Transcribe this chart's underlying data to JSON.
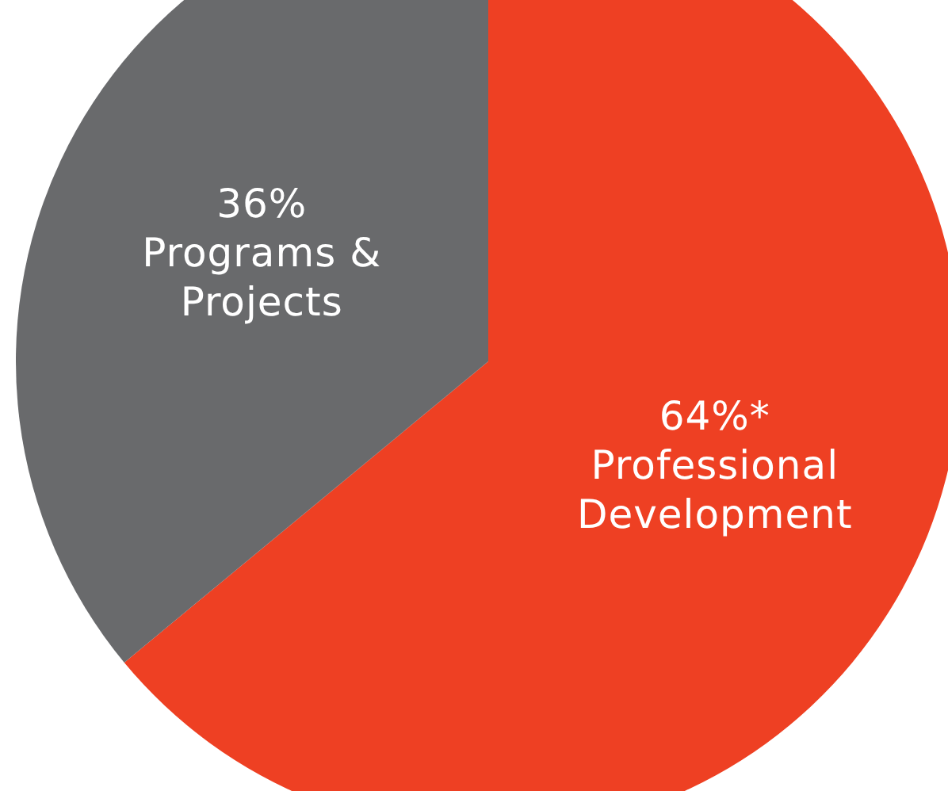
{
  "chart_data": {
    "type": "pie",
    "categories": [
      "Professional Development",
      "Programs & Projects"
    ],
    "values": [
      64,
      36
    ],
    "value_labels": [
      "64%*",
      "36%"
    ],
    "colors": [
      "#ee4023",
      "#696a6c"
    ]
  }
}
